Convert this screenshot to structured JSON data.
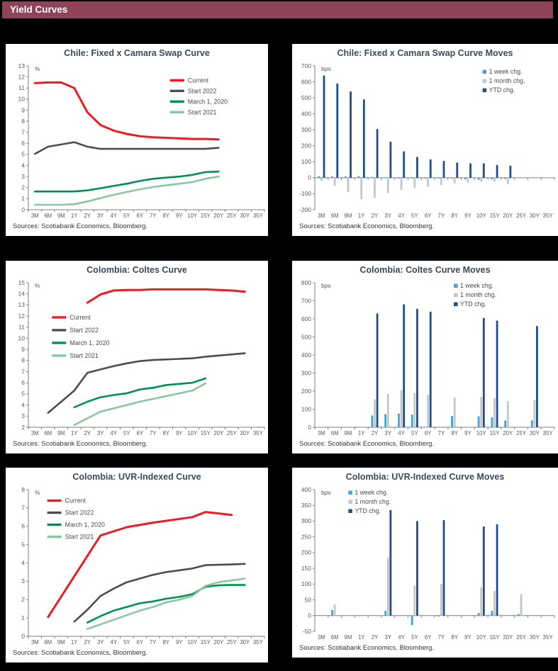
{
  "header": {
    "title": "Yield Curves",
    "bar_color": "#8e4358"
  },
  "colors": {
    "page_bg": "#000000",
    "card_bg": "#ffffff",
    "axis": "#7f7f7f",
    "tick_text": "#595959",
    "title_text": "#3d4a56",
    "sources_text": "#333333",
    "legend_text": "#4a4a4a"
  },
  "chart_data": [
    {
      "id": "chile-swap-curve",
      "type": "line",
      "title": "Chile: Fixed x Camara Swap Curve",
      "sources": "Sources: Scotiabank Economics, Bloomberg.",
      "unit": "%",
      "ylim": [
        0,
        13
      ],
      "ytick": 1,
      "grid": false,
      "categories": [
        "3M",
        "6M",
        "9M",
        "1Y",
        "2Y",
        "3Y",
        "4Y",
        "5Y",
        "6Y",
        "7Y",
        "8Y",
        "9Y",
        "10Y",
        "15Y",
        "20Y",
        "25Y",
        "30Y",
        "35Y"
      ],
      "legend": {
        "position": "top-right",
        "x": 0.6,
        "y": 0.1,
        "dy": 15
      },
      "series": [
        {
          "name": "Current",
          "color": "#ed1c24",
          "width": 3,
          "values": [
            11.45,
            11.5,
            11.5,
            11.0,
            8.8,
            7.65,
            7.15,
            6.85,
            6.65,
            6.55,
            6.5,
            6.45,
            6.4,
            6.4,
            6.35,
            null,
            null,
            null
          ]
        },
        {
          "name": "Start 2022",
          "color": "#4d4d4d",
          "width": 2.6,
          "values": [
            5.05,
            5.7,
            5.9,
            6.1,
            5.7,
            5.5,
            5.5,
            5.5,
            5.5,
            5.5,
            5.5,
            5.5,
            5.5,
            5.5,
            5.6,
            null,
            null,
            null
          ]
        },
        {
          "name": "March 1, 2020",
          "color": "#009150",
          "width": 2.6,
          "values": [
            1.65,
            1.65,
            1.65,
            1.65,
            1.75,
            1.95,
            2.15,
            2.35,
            2.6,
            2.8,
            2.9,
            3.0,
            3.15,
            3.4,
            3.45,
            null,
            null,
            null
          ]
        },
        {
          "name": "Start 2021",
          "color": "#8cc6a0",
          "width": 2.6,
          "values": [
            0.45,
            0.45,
            0.45,
            0.5,
            0.75,
            1.05,
            1.35,
            1.6,
            1.85,
            2.05,
            2.2,
            2.35,
            2.5,
            2.8,
            3.0,
            null,
            null,
            null
          ]
        }
      ]
    },
    {
      "id": "chile-swap-moves",
      "type": "bar",
      "title": "Chile: Fixed x Camara Swap Curve Moves",
      "sources": "Sources: Scotiabank Economics, Bloomberg.",
      "unit": "bps",
      "ylim": [
        -200,
        700
      ],
      "ytick": 100,
      "grid": false,
      "categories": [
        "3M",
        "6M",
        "9M",
        "1Y",
        "2Y",
        "3Y",
        "4Y",
        "5Y",
        "6Y",
        "7Y",
        "8Y",
        "9Y",
        "10Y",
        "15Y",
        "20Y",
        "25Y",
        "30Y",
        "35Y"
      ],
      "legend": {
        "position": "top-right",
        "x": 0.7,
        "y": 0.05,
        "dy": 13
      },
      "series": [
        {
          "name": "1 week chg.",
          "color": "#3da5d9",
          "values": [
            10,
            8,
            8,
            10,
            5,
            3,
            -5,
            -5,
            -5,
            -5,
            -5,
            -10,
            -12,
            -10,
            -8,
            null,
            null,
            null
          ]
        },
        {
          "name": "1 month chg.",
          "color": "#c6c6c6",
          "values": [
            -20,
            -50,
            -90,
            -135,
            -125,
            -95,
            -75,
            -65,
            -55,
            -45,
            -35,
            -30,
            -25,
            -25,
            -40,
            null,
            null,
            null
          ]
        },
        {
          "name": "YTD chg.",
          "color": "#1f4e8c",
          "values": [
            640,
            590,
            540,
            490,
            305,
            225,
            165,
            130,
            115,
            105,
            95,
            90,
            90,
            80,
            75,
            null,
            null,
            null
          ]
        }
      ]
    },
    {
      "id": "colombia-coltes-curve",
      "type": "line",
      "title": "Colombia: Coltes Curve",
      "sources": "Sources: Scotiabank Economics, Bloomberg.",
      "unit": "%",
      "ylim": [
        2,
        15
      ],
      "ytick": 1,
      "grid": false,
      "categories": [
        "3M",
        "6M",
        "9M",
        "1Y",
        "2Y",
        "3Y",
        "4Y",
        "5Y",
        "6Y",
        "7Y",
        "8Y",
        "9Y",
        "10Y",
        "15Y",
        "20Y",
        "25Y",
        "30Y",
        "35Y"
      ],
      "legend": {
        "position": "left",
        "x": 0.1,
        "y": 0.24,
        "dy": 18
      },
      "series": [
        {
          "name": "Current",
          "color": "#ed1c24",
          "width": 3,
          "values": [
            null,
            null,
            null,
            null,
            13.2,
            13.95,
            14.3,
            14.35,
            14.35,
            14.4,
            14.4,
            14.4,
            14.4,
            14.4,
            14.35,
            14.3,
            14.2,
            null
          ]
        },
        {
          "name": "Start 2022",
          "color": "#4d4d4d",
          "width": 2.6,
          "values": [
            null,
            3.3,
            null,
            5.3,
            6.9,
            7.2,
            7.5,
            7.75,
            7.95,
            8.05,
            8.1,
            8.15,
            8.2,
            8.35,
            8.45,
            8.55,
            8.65,
            null
          ]
        },
        {
          "name": "March 1, 2020",
          "color": "#009150",
          "width": 2.6,
          "values": [
            null,
            null,
            null,
            3.8,
            4.3,
            4.7,
            4.9,
            5.05,
            5.4,
            5.55,
            5.8,
            5.9,
            6.0,
            6.4,
            null,
            null,
            null,
            null
          ]
        },
        {
          "name": "Start 2021",
          "color": "#8cc6a0",
          "width": 2.6,
          "values": [
            null,
            null,
            null,
            2.2,
            2.8,
            3.4,
            3.7,
            4.0,
            4.3,
            4.55,
            4.8,
            5.05,
            5.3,
            5.95,
            null,
            null,
            null,
            null
          ]
        }
      ]
    },
    {
      "id": "colombia-coltes-moves",
      "type": "bar",
      "title": "Colombia: Coltes Curve Moves",
      "sources": "Sources: Scotiabank Economics, Bloomberg.",
      "unit": "bps",
      "ylim": [
        0,
        800
      ],
      "ytick": 100,
      "grid": false,
      "categories": [
        "3M",
        "6M",
        "9M",
        "1Y",
        "2Y",
        "3Y",
        "4Y",
        "5Y",
        "6Y",
        "7Y",
        "8Y",
        "9Y",
        "10Y",
        "15Y",
        "20Y",
        "25Y",
        "30Y",
        "35Y"
      ],
      "legend": {
        "position": "top-right",
        "x": 0.58,
        "y": 0.03,
        "dy": 13
      },
      "series": [
        {
          "name": "1 week chg.",
          "color": "#3da5d9",
          "values": [
            null,
            null,
            null,
            null,
            65,
            72,
            75,
            70,
            null,
            null,
            62,
            null,
            60,
            55,
            38,
            null,
            38,
            null
          ]
        },
        {
          "name": "1 month chg.",
          "color": "#c6c6c6",
          "values": [
            null,
            null,
            null,
            null,
            155,
            185,
            205,
            188,
            180,
            null,
            165,
            null,
            168,
            162,
            145,
            null,
            150,
            null
          ]
        },
        {
          "name": "YTD chg.",
          "color": "#1f4e8c",
          "values": [
            null,
            null,
            null,
            null,
            630,
            null,
            680,
            655,
            640,
            null,
            null,
            null,
            605,
            590,
            null,
            null,
            560,
            null
          ]
        }
      ]
    },
    {
      "id": "colombia-uvr-curve",
      "type": "line",
      "title": "Colombia: UVR-Indexed Curve",
      "sources": "Sources: Scotiabank Economics, Bloomberg.",
      "unit": "%",
      "ylim": [
        0,
        8
      ],
      "ytick": 1,
      "grid": false,
      "categories": [
        "3M",
        "6M",
        "9M",
        "1Y",
        "2Y",
        "3Y",
        "4Y",
        "5Y",
        "6Y",
        "7Y",
        "8Y",
        "9Y",
        "10Y",
        "15Y",
        "20Y",
        "25Y",
        "30Y",
        "35Y"
      ],
      "legend": {
        "position": "top-left",
        "x": 0.08,
        "y": 0.075,
        "dy": 17
      },
      "series": [
        {
          "name": "Current",
          "color": "#ed1c24",
          "width": 3,
          "values": [
            null,
            1.05,
            null,
            null,
            null,
            5.5,
            null,
            5.95,
            null,
            6.2,
            null,
            null,
            6.5,
            6.78,
            6.7,
            6.62,
            null,
            null
          ]
        },
        {
          "name": "Start 2022",
          "color": "#4d4d4d",
          "width": 2.6,
          "values": [
            null,
            null,
            null,
            0.8,
            1.45,
            2.2,
            2.6,
            2.95,
            3.15,
            3.35,
            3.5,
            3.6,
            3.7,
            3.88,
            3.9,
            3.92,
            3.95,
            null
          ]
        },
        {
          "name": "March 1, 2020",
          "color": "#009150",
          "width": 2.6,
          "values": [
            null,
            null,
            null,
            null,
            0.75,
            1.1,
            1.4,
            1.6,
            1.8,
            1.9,
            2.05,
            2.15,
            2.3,
            2.7,
            2.78,
            2.8,
            2.8,
            null
          ]
        },
        {
          "name": "Start 2021",
          "color": "#8cc6a0",
          "width": 2.6,
          "values": [
            null,
            null,
            null,
            null,
            0.4,
            0.65,
            0.9,
            1.15,
            1.4,
            1.6,
            1.85,
            2.0,
            2.2,
            2.75,
            2.95,
            3.05,
            3.15,
            null
          ]
        }
      ]
    },
    {
      "id": "colombia-uvr-moves",
      "type": "bar",
      "title": "Colombia: UVR-Indexed Curve Moves",
      "sources": "Sources: Scotiabank Economics, Bloomberg.",
      "unit": "bps",
      "ylim": [
        -50,
        400
      ],
      "ytick": 50,
      "grid": false,
      "categories": [
        "3M",
        "6M",
        "9M",
        "1Y",
        "2Y",
        "3Y",
        "4Y",
        "5Y",
        "6Y",
        "7Y",
        "8Y",
        "9Y",
        "10Y",
        "15Y",
        "20Y",
        "25Y",
        "30Y",
        "35Y"
      ],
      "legend": {
        "position": "top-left",
        "x": 0.14,
        "y": 0.03,
        "dy": 13
      },
      "series": [
        {
          "name": "1 week chg.",
          "color": "#3da5d9",
          "values": [
            null,
            18,
            null,
            null,
            null,
            15,
            null,
            -30,
            null,
            -3,
            null,
            null,
            8,
            15,
            null,
            5,
            null,
            null
          ]
        },
        {
          "name": "1 month chg.",
          "color": "#c6c6c6",
          "values": [
            null,
            35,
            null,
            null,
            null,
            185,
            null,
            95,
            null,
            100,
            null,
            null,
            90,
            78,
            null,
            68,
            null,
            null
          ]
        },
        {
          "name": "YTD chg.",
          "color": "#1f4e8c",
          "values": [
            null,
            null,
            null,
            null,
            null,
            335,
            null,
            300,
            null,
            303,
            null,
            null,
            283,
            290,
            null,
            null,
            null,
            null
          ]
        }
      ]
    }
  ]
}
